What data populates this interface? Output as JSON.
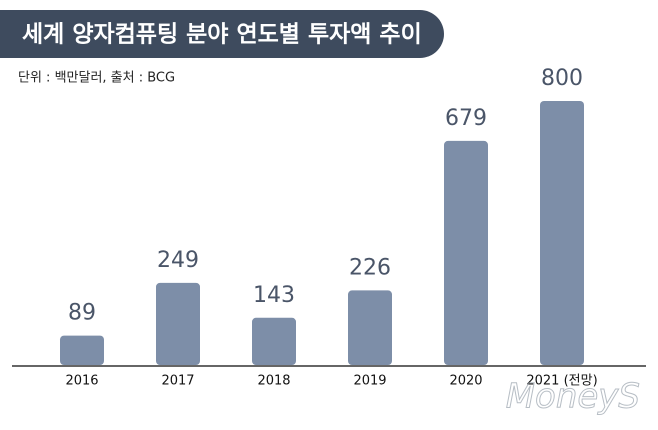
{
  "chart_data": {
    "type": "bar",
    "title": "세계 양자컴퓨팅 분야 연도별 투자액 추이",
    "subtitle": "단위 : 백만달러, 출처 : BCG",
    "categories": [
      "2016",
      "2017",
      "2018",
      "2019",
      "2020",
      "2021 (전망)"
    ],
    "values": [
      89,
      249,
      143,
      226,
      679,
      800
    ],
    "color": "#7d8ea8",
    "watermark": "MoneyS"
  }
}
